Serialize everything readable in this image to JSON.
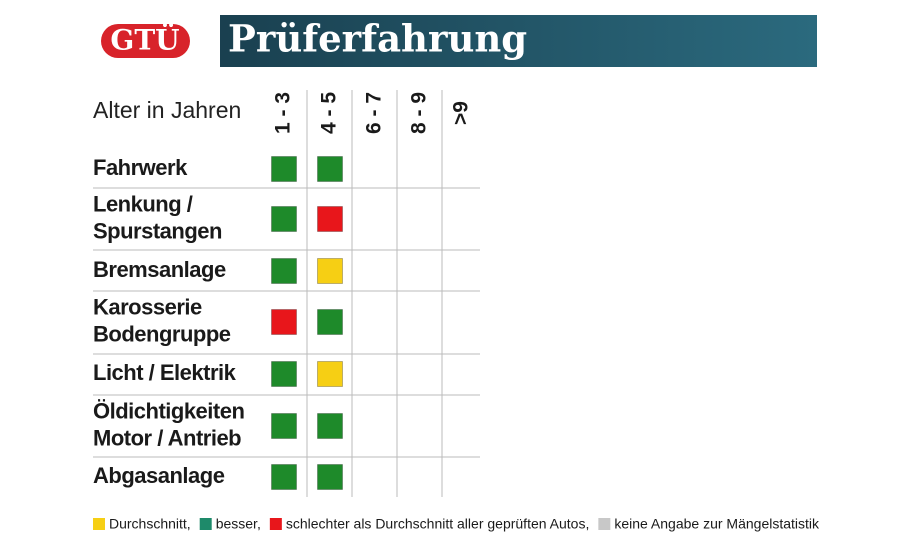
{
  "header": {
    "logo": "GTÜ",
    "title": "Prüferfahrung"
  },
  "table": {
    "header_label": "Alter in Jahren",
    "columns": [
      "1 - 3",
      "4 - 5",
      "6 - 7",
      "8 - 9",
      ">9"
    ],
    "rows": [
      {
        "label": [
          "Fahrwerk"
        ],
        "cells": [
          "#1e8a2a",
          "#1e8a2a",
          null,
          null,
          null
        ]
      },
      {
        "label": [
          "Lenkung /",
          "Spurstangen"
        ],
        "cells": [
          "#1e8a2a",
          "#e8161b",
          null,
          null,
          null
        ]
      },
      {
        "label": [
          "Bremsanlage"
        ],
        "cells": [
          "#1e8a2a",
          "#f6cf14",
          null,
          null,
          null
        ]
      },
      {
        "label": [
          "Karosserie",
          "Bodengruppe"
        ],
        "cells": [
          "#e8161b",
          "#1e8a2a",
          null,
          null,
          null
        ]
      },
      {
        "label": [
          "Licht / Elektrik"
        ],
        "cells": [
          "#1e8a2a",
          "#f6cf14",
          null,
          null,
          null
        ]
      },
      {
        "label": [
          "Öldichtigkeiten",
          "Motor / Antrieb"
        ],
        "cells": [
          "#1e8a2a",
          "#1e8a2a",
          null,
          null,
          null
        ]
      },
      {
        "label": [
          "Abgasanlage"
        ],
        "cells": [
          "#1e8a2a",
          "#1e8a2a",
          null,
          null,
          null
        ]
      }
    ]
  },
  "legend": [
    {
      "color": "#f6cf14",
      "text": "Durchschnitt,"
    },
    {
      "color": "#1e8a6a",
      "text": "besser,"
    },
    {
      "color": "#e8161b",
      "text": "schlechter als Durchschnitt aller geprüften Autos,"
    },
    {
      "color": "#c8c8c8",
      "text": "keine Angabe zur Mängelstatistik"
    }
  ]
}
